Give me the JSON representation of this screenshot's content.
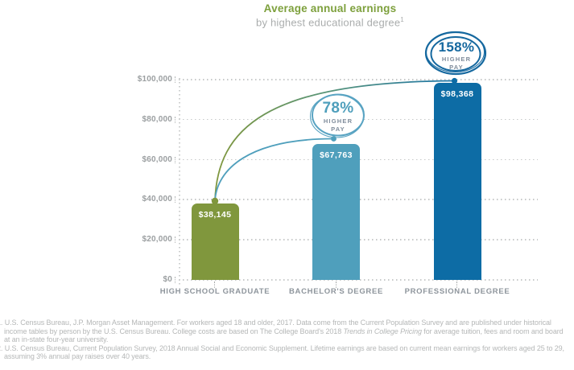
{
  "header": {
    "title": "Average annual earnings",
    "subtitle": "by highest educational degree",
    "subtitle_superscript": "1"
  },
  "chart_data": {
    "type": "bar",
    "title": "Average annual earnings",
    "subtitle": "by highest educational degree",
    "categories": [
      "HIGH SCHOOL GRADUATE",
      "BACHELOR'S DEGREE",
      "PROFESSIONAL DEGREE"
    ],
    "values": [
      38145,
      67763,
      98368
    ],
    "value_labels": [
      "$38,145",
      "$67,763",
      "$98,368"
    ],
    "bar_colors": [
      "#80973d",
      "#4f9fbc",
      "#0d6ca5"
    ],
    "ylim": [
      0,
      100000
    ],
    "y_ticks": [
      {
        "label": "$100,000",
        "value": 100000
      },
      {
        "label": "$80,000",
        "value": 80000
      },
      {
        "label": "$60,000",
        "value": 60000
      },
      {
        "label": "$40,000",
        "value": 40000
      },
      {
        "label": "$20,000",
        "value": 20000
      },
      {
        "label": "$0",
        "value": 0
      }
    ],
    "grid": "dotted horizontal gridlines, dotted y-axis",
    "legend": "none",
    "annotations": [
      {
        "pct": "78%",
        "line1": "HIGHER",
        "line2": "PAY",
        "color": "#4f9fbc",
        "from_category": "HIGH SCHOOL GRADUATE",
        "to_category": "BACHELOR'S DEGREE"
      },
      {
        "pct": "158%",
        "line1": "HIGHER",
        "line2": "PAY",
        "color": "#15689f",
        "from_category": "HIGH SCHOOL GRADUATE",
        "to_category": "PROFESSIONAL DEGREE"
      }
    ]
  },
  "footnotes": {
    "note1_pre": "1. U.S. Census Bureau, J.P. Morgan Asset Management. For workers aged 18 and older, 2017. Data come from the Current Population Survey and are published under historical income tables by person by the U.S. Census Bureau. College costs are based on The College Board's 2018 ",
    "note1_italic": "Trends in College Pricing",
    "note1_post": " for average tuition, fees and room and board at an in-state four-year university.",
    "note2": "2. U.S. Census Bureau, Current Population Survey, 2018 Annual Social and Economic Supplement. Lifetime earnings are based on current mean earnings for workers aged 25 to 29, assuming 3% annual pay raises over 40 years."
  }
}
